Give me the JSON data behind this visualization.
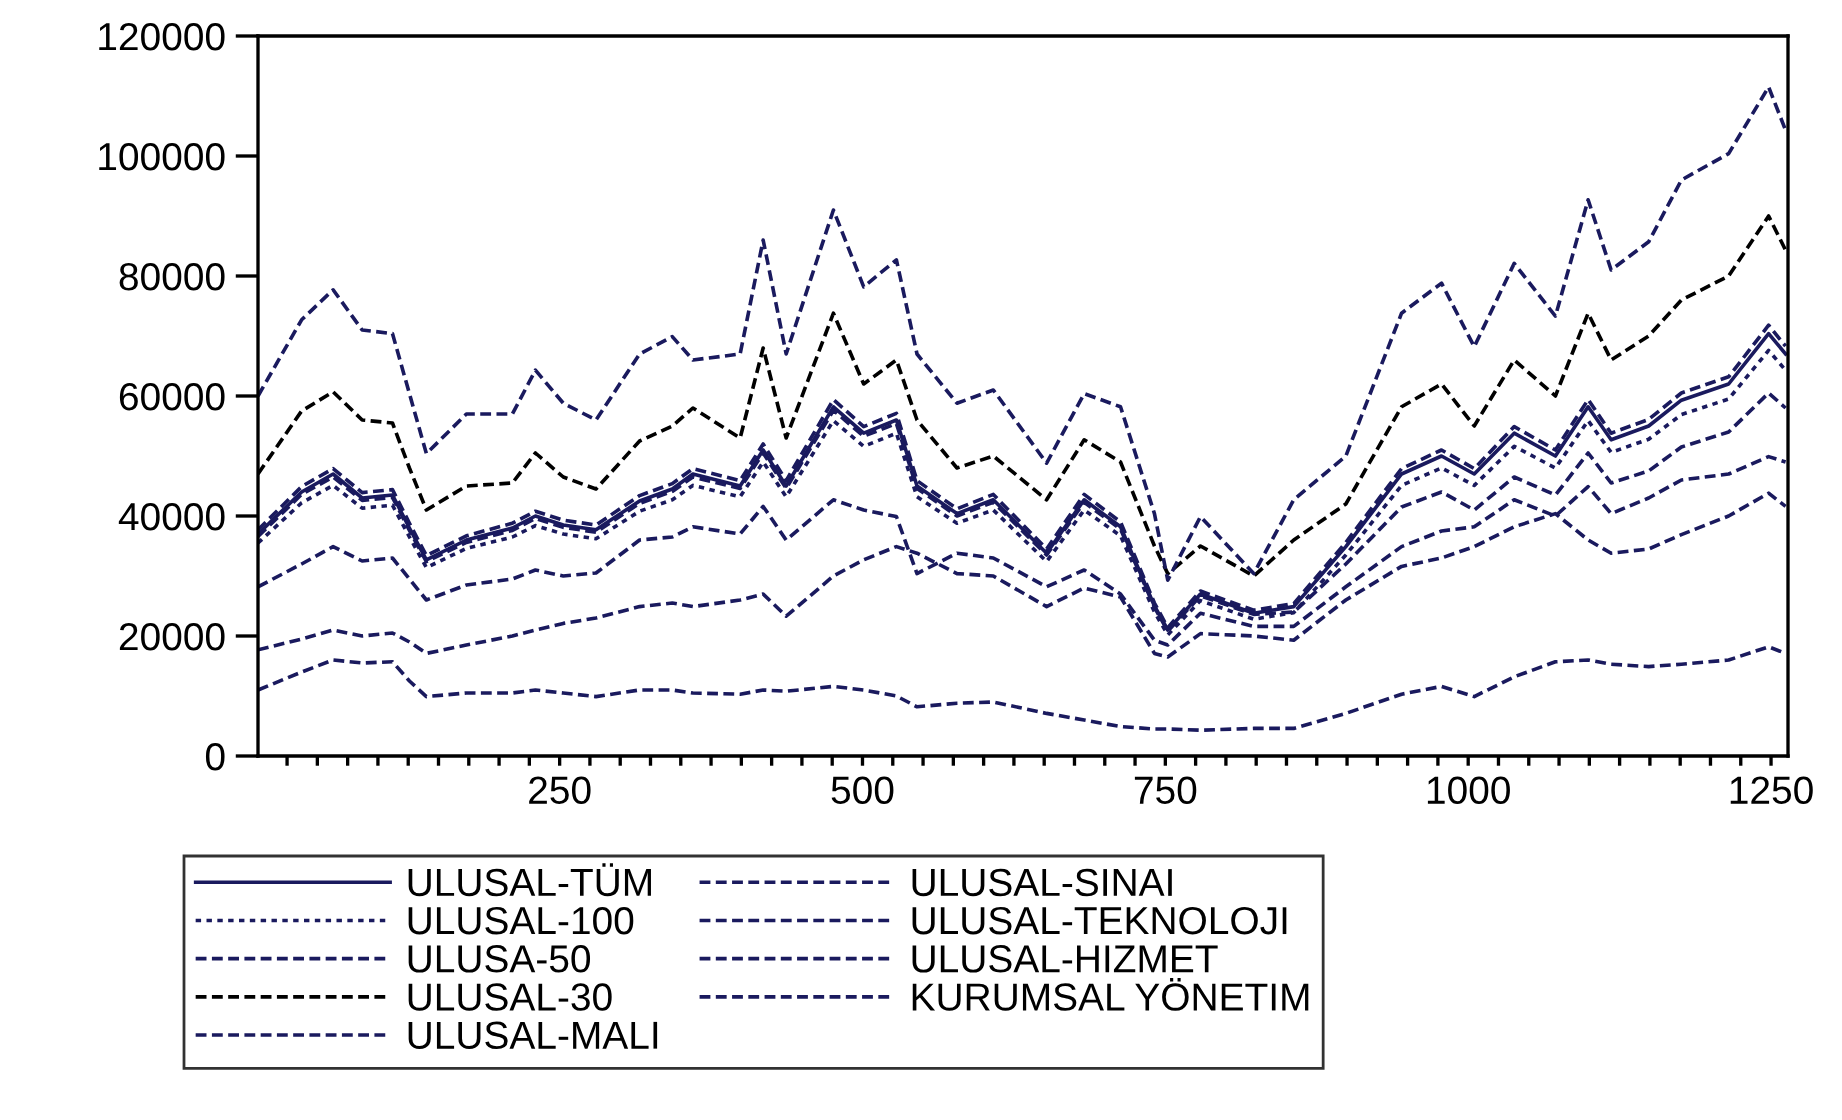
{
  "chart_data": {
    "type": "line",
    "x": [
      1,
      37,
      63,
      87,
      112,
      126,
      140,
      173,
      211,
      230,
      253,
      280,
      316,
      343,
      360,
      399,
      418,
      437,
      476,
      501,
      528,
      545,
      578,
      608,
      652,
      683,
      713,
      741,
      752,
      779,
      823,
      856,
      899,
      945,
      978,
      1005,
      1038,
      1072,
      1099,
      1118,
      1149,
      1176,
      1215,
      1248,
      1262
    ],
    "series": [
      {
        "name": "ULUSAL-TÜM",
        "color": "#1a1a5e",
        "line_style": "solid",
        "values": [
          37000,
          44000,
          47000,
          43000,
          43500,
          38000,
          32700,
          36000,
          38000,
          40000,
          38500,
          37700,
          42500,
          44500,
          47000,
          45000,
          51000,
          45000,
          58200,
          53800,
          56000,
          45000,
          40400,
          42700,
          33800,
          42700,
          38200,
          25000,
          21000,
          27000,
          23800,
          24900,
          34900,
          47000,
          50000,
          47000,
          53800,
          50000,
          58200,
          52700,
          55000,
          59300,
          62000,
          70400,
          67000
        ]
      },
      {
        "name": "ULUSAL-100",
        "color": "#1a1a5e",
        "line_style": "dotted",
        "values": [
          35500,
          42200,
          45100,
          41300,
          41800,
          36500,
          31400,
          34600,
          36500,
          38400,
          37000,
          36200,
          40800,
          42700,
          45100,
          43200,
          49000,
          43200,
          55900,
          51600,
          53800,
          43200,
          38800,
          41000,
          32400,
          41000,
          36700,
          24000,
          20200,
          25900,
          22800,
          23900,
          33500,
          45100,
          48000,
          45100,
          51600,
          48000,
          55900,
          50600,
          52800,
          56900,
          59500,
          67600,
          64300
        ]
      },
      {
        "name": "ULUSA-50",
        "color": "#1a1a5e",
        "line_style": "dashed",
        "values": [
          37700,
          44900,
          47900,
          43900,
          44400,
          38800,
          33400,
          36700,
          38800,
          40800,
          39300,
          38500,
          43400,
          45400,
          47900,
          45900,
          52000,
          45900,
          59400,
          54900,
          57100,
          45900,
          41200,
          43600,
          34500,
          43600,
          39000,
          25500,
          21400,
          27500,
          24300,
          25400,
          35600,
          47900,
          51000,
          47900,
          54900,
          51000,
          59400,
          53800,
          56100,
          60500,
          63200,
          71800,
          68300
        ]
      },
      {
        "name": "ULUSAL-30",
        "color": "#000000",
        "line_style": "dashed",
        "values": [
          47000,
          57500,
          60700,
          56000,
          55500,
          48000,
          41000,
          45000,
          45500,
          50500,
          46500,
          44500,
          52500,
          55000,
          58000,
          53000,
          68000,
          53000,
          73800,
          62000,
          66000,
          56000,
          48000,
          50000,
          42700,
          52700,
          49000,
          35000,
          30400,
          35000,
          30000,
          36000,
          42000,
          58200,
          62000,
          55000,
          66000,
          60000,
          73800,
          66000,
          70000,
          76000,
          80000,
          90000,
          84300
        ]
      },
      {
        "name": "ULUSAL-MALI",
        "color": "#1a1a5e",
        "line_style": "dashed",
        "values": [
          60000,
          72700,
          77700,
          71000,
          70400,
          60400,
          50400,
          57000,
          57000,
          64300,
          58800,
          56000,
          67000,
          69900,
          66000,
          67000,
          86000,
          67000,
          91000,
          78200,
          82700,
          67000,
          58800,
          61000,
          48800,
          60400,
          58200,
          40400,
          29300,
          39900,
          30400,
          42700,
          50000,
          73800,
          78800,
          68200,
          82100,
          73300,
          92700,
          81000,
          85700,
          96000,
          100400,
          111500,
          104300
        ]
      },
      {
        "name": "ULUSAL-SINAI",
        "color": "#1a1a5e",
        "line_style": "dashed",
        "values": [
          17700,
          19500,
          21000,
          20000,
          20500,
          19000,
          17100,
          18500,
          20000,
          21000,
          22100,
          23000,
          24900,
          25500,
          24900,
          26000,
          27000,
          23300,
          30000,
          32700,
          34900,
          33800,
          30400,
          30000,
          24900,
          28000,
          26500,
          17100,
          16500,
          20400,
          20000,
          19300,
          26000,
          31600,
          33000,
          34900,
          38200,
          40400,
          36000,
          33800,
          34500,
          36900,
          40000,
          43800,
          41600
        ]
      },
      {
        "name": "ULUSAL-TEKNOLOJI",
        "color": "#1a1a5e",
        "line_style": "dashed",
        "values": [
          11000,
          14000,
          16000,
          15500,
          15700,
          12500,
          9900,
          10500,
          10500,
          11000,
          10500,
          9900,
          11000,
          11000,
          10500,
          10300,
          11000,
          10800,
          11600,
          11000,
          10000,
          8200,
          8800,
          9000,
          7100,
          6000,
          4900,
          4500,
          4500,
          4300,
          4600,
          4600,
          7100,
          10300,
          11600,
          9900,
          13200,
          15700,
          16000,
          15300,
          14900,
          15300,
          16000,
          18200,
          17100
        ]
      },
      {
        "name": "ULUSAL-HIZMET",
        "color": "#1a1a5e",
        "line_style": "dashed",
        "values": [
          28200,
          32000,
          34900,
          32500,
          33000,
          29500,
          26000,
          28500,
          29500,
          31000,
          30000,
          30500,
          36000,
          36500,
          38200,
          37000,
          41600,
          36000,
          42700,
          41000,
          39900,
          30400,
          33800,
          33000,
          28200,
          31000,
          27000,
          19300,
          18500,
          23800,
          21600,
          21600,
          28200,
          34900,
          37500,
          38200,
          42700,
          40000,
          44900,
          40400,
          43000,
          46000,
          47000,
          49900,
          49000
        ]
      },
      {
        "name": "KURUMSAL YÖNETIM",
        "color": "#1a1a5e",
        "line_style": "dashed",
        "values": [
          36600,
          43600,
          46500,
          42600,
          43100,
          37600,
          32400,
          35600,
          37600,
          39600,
          38100,
          37300,
          42100,
          44100,
          46500,
          44600,
          50500,
          44600,
          57600,
          53300,
          55400,
          44600,
          40000,
          42300,
          33500,
          42300,
          37800,
          24800,
          20800,
          26700,
          23600,
          24000,
          32000,
          41500,
          44000,
          41000,
          46500,
          43500,
          50500,
          45500,
          47500,
          51500,
          54000,
          60500,
          58000
        ]
      }
    ],
    "xlim": [
      1,
      1264
    ],
    "xticks": [
      {
        "value": 25,
        "label": null
      },
      {
        "value": 50,
        "label": null
      },
      {
        "value": 75,
        "label": null
      },
      {
        "value": 100,
        "label": null
      },
      {
        "value": 125,
        "label": null
      },
      {
        "value": 150,
        "label": null
      },
      {
        "value": 175,
        "label": null
      },
      {
        "value": 200,
        "label": null
      },
      {
        "value": 225,
        "label": null
      },
      250,
      {
        "value": 275,
        "label": null
      },
      {
        "value": 300,
        "label": null
      },
      {
        "value": 325,
        "label": null
      },
      {
        "value": 350,
        "label": null
      },
      {
        "value": 375,
        "label": null
      },
      {
        "value": 400,
        "label": null
      },
      {
        "value": 425,
        "label": null
      },
      {
        "value": 450,
        "label": null
      },
      {
        "value": 475,
        "label": null
      },
      500,
      {
        "value": 525,
        "label": null
      },
      {
        "value": 550,
        "label": null
      },
      {
        "value": 575,
        "label": null
      },
      {
        "value": 600,
        "label": null
      },
      {
        "value": 625,
        "label": null
      },
      {
        "value": 650,
        "label": null
      },
      {
        "value": 675,
        "label": null
      },
      {
        "value": 700,
        "label": null
      },
      {
        "value": 725,
        "label": null
      },
      750,
      {
        "value": 775,
        "label": null
      },
      {
        "value": 800,
        "label": null
      },
      {
        "value": 825,
        "label": null
      },
      {
        "value": 850,
        "label": null
      },
      {
        "value": 875,
        "label": null
      },
      {
        "value": 900,
        "label": null
      },
      {
        "value": 925,
        "label": null
      },
      {
        "value": 950,
        "label": null
      },
      {
        "value": 975,
        "label": null
      },
      1000,
      {
        "value": 1025,
        "label": null
      },
      {
        "value": 1050,
        "label": null
      },
      {
        "value": 1075,
        "label": null
      },
      {
        "value": 1100,
        "label": null
      },
      {
        "value": 1125,
        "label": null
      },
      {
        "value": 1150,
        "label": null
      },
      {
        "value": 1175,
        "label": null
      },
      {
        "value": 1200,
        "label": null
      },
      {
        "value": 1225,
        "label": null
      },
      1250
    ],
    "ylim": [
      0,
      120000
    ],
    "yticks": [
      0,
      20000,
      40000,
      60000,
      80000,
      100000,
      120000
    ],
    "grid": false,
    "legend": "bottom"
  }
}
